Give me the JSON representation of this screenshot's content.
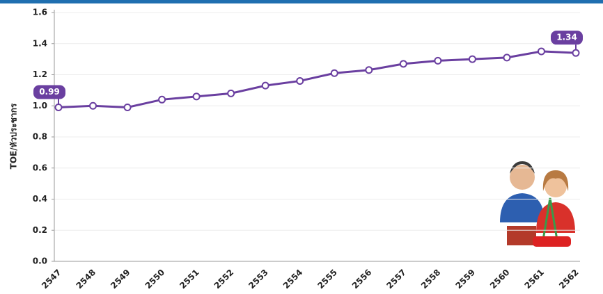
{
  "chart_data": {
    "type": "line",
    "y_label": "TOE/หัวประชากร",
    "categories": [
      "2547",
      "2548",
      "2549",
      "2550",
      "2551",
      "2552",
      "2553",
      "2554",
      "2555",
      "2556",
      "2557",
      "2558",
      "2559",
      "2560",
      "2561",
      "2562"
    ],
    "series": [
      {
        "color": "#6a3fa0",
        "values": [
          0.99,
          1.0,
          0.99,
          1.04,
          1.06,
          1.08,
          1.13,
          1.16,
          1.21,
          1.23,
          1.27,
          1.29,
          1.3,
          1.31,
          1.35,
          1.34
        ],
        "value_labels": [
          "0.99",
          null,
          null,
          null,
          null,
          null,
          null,
          null,
          null,
          null,
          null,
          null,
          null,
          null,
          null,
          "1.34"
        ]
      }
    ],
    "ylim": [
      0,
      1.6
    ],
    "yticks": [
      {
        "value": 0,
        "label": "0.0"
      },
      0.2,
      0.4,
      0.6,
      0.8,
      {
        "value": 1,
        "label": "1.0"
      },
      1.2,
      1.4,
      1.6
    ],
    "grid": true
  }
}
